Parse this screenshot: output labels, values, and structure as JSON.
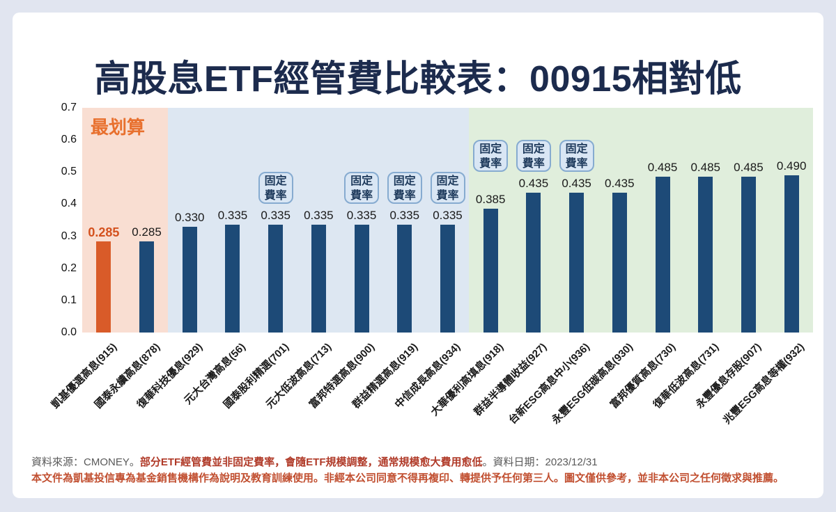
{
  "page": {
    "title": "高股息ETF經管費比較表：00915相對低",
    "background": "#e1e5f0",
    "card_background": "#ffffff"
  },
  "chart_data": {
    "type": "bar",
    "title": "高股息ETF經管費比較表：00915相對低",
    "xlabel": "",
    "ylabel": "",
    "ylim": [
      0,
      0.7
    ],
    "yticks": [
      "0.0",
      "0.1",
      "0.2",
      "0.3",
      "0.4",
      "0.5",
      "0.6",
      "0.7"
    ],
    "grid": false,
    "legend": false,
    "categories": [
      "凱基優選高息(915)",
      "國泰永續高息(878)",
      "復華科技優息(929)",
      "元大台灣高息(56)",
      "國泰股利精選(701)",
      "元大低波高息(713)",
      "富邦特選高息(900)",
      "群益精選高息(919)",
      "中信成長高息(934)",
      "大華優利高填息(918)",
      "群益半導體收益(927)",
      "台新ESG高息中小(936)",
      "永豐ESG低碳高息(930)",
      "富邦優質高息(730)",
      "復華低波高息(731)",
      "永豐優息存股(907)",
      "兆豐ESG高息等權(932)"
    ],
    "values": [
      0.285,
      0.285,
      0.33,
      0.335,
      0.335,
      0.335,
      0.335,
      0.335,
      0.335,
      0.385,
      0.435,
      0.435,
      0.435,
      0.485,
      0.485,
      0.485,
      0.49
    ],
    "value_labels": [
      "0.285",
      "0.285",
      "0.330",
      "0.335",
      "0.335",
      "0.335",
      "0.335",
      "0.335",
      "0.335",
      "0.385",
      "0.435",
      "0.435",
      "0.435",
      "0.485",
      "0.485",
      "0.485",
      "0.490"
    ],
    "highlight_index": 0,
    "bar_color": "#1d4a77",
    "highlight_color": "#d95b29",
    "annotation": {
      "text": "最划算",
      "color": "#e8702e"
    },
    "badge_label_lines": [
      "固定",
      "費率"
    ],
    "badges": [
      {
        "bar": 4,
        "anchor": 0.335
      },
      {
        "bar": 6,
        "anchor": 0.335
      },
      {
        "bar": 7,
        "anchor": 0.335
      },
      {
        "bar": 8,
        "anchor": 0.335
      },
      {
        "bar": 9,
        "anchor": 0.435
      },
      {
        "bar": 10,
        "anchor": 0.435
      },
      {
        "bar": 11,
        "anchor": 0.435
      }
    ],
    "regions": [
      {
        "name": "best-zone",
        "color": "#f9ded2",
        "from": 0,
        "to": 1
      },
      {
        "name": "variable-zone",
        "color": "#dde7f2",
        "from": 2,
        "to": 8
      },
      {
        "name": "fixed-zone",
        "color": "#e0eedc",
        "from": 9,
        "to": 16
      }
    ]
  },
  "footer": {
    "source_prefix": "資料來源：CMONEY。",
    "source_highlight": "部分ETF經管費並非固定費率，會隨ETF規模調整，通常規模愈大費用愈低",
    "source_suffix": "。資料日期：2023/12/31",
    "disclaimer": "本文件為凱基投信專為基金銷售機構作為說明及教育訓練使用。非經本公司同意不得再複印、轉提供予任何第三人。圖文僅供參考，並非本公司之任何徵求與推薦。"
  }
}
